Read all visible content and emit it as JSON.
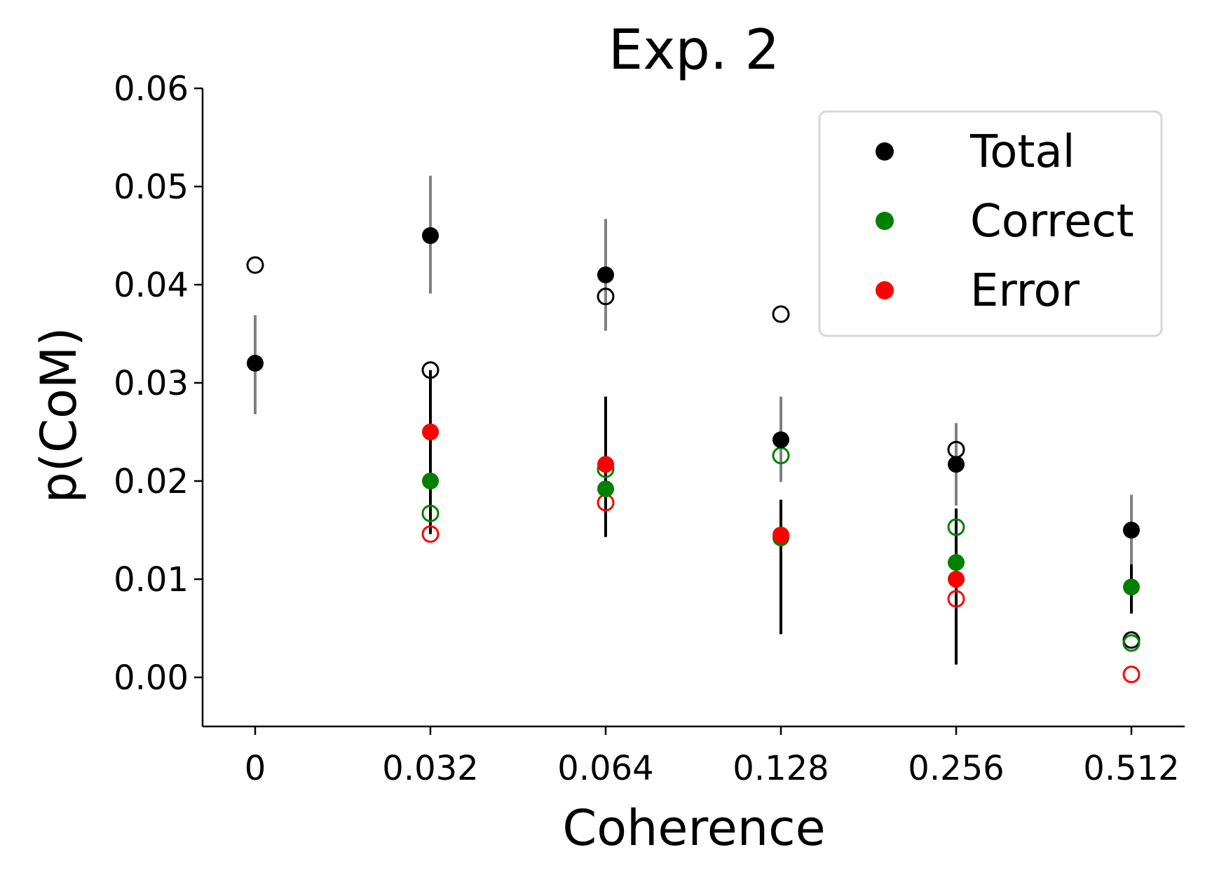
{
  "chart_data": {
    "type": "scatter",
    "title": "Exp. 2",
    "xlabel": "Coherence",
    "ylabel": "p(CoM)",
    "categories": [
      "0",
      "0.032",
      "0.064",
      "0.128",
      "0.256",
      "0.512"
    ],
    "ylim": [
      -0.005,
      0.06
    ],
    "yticks": [
      "0.00",
      "0.01",
      "0.02",
      "0.03",
      "0.04",
      "0.05",
      "0.06"
    ],
    "grid": false,
    "legend_position": "top-right",
    "series": [
      {
        "name": "Total",
        "color": "#000000",
        "filled": [
          0.032,
          0.045,
          0.041,
          0.0242,
          0.0217,
          0.015
        ],
        "error": [
          [
            0.0268,
            0.0369
          ],
          [
            0.0391,
            0.0511
          ],
          [
            0.0353,
            0.0467
          ],
          [
            0.0199,
            0.0286
          ],
          [
            0.0175,
            0.0259
          ],
          [
            0.0115,
            0.0186
          ]
        ],
        "hollow": [
          0.042,
          0.0313,
          0.0388,
          0.037,
          0.0232,
          0.0038
        ]
      },
      {
        "name": "Correct",
        "color": "#008000",
        "filled": [
          null,
          0.02,
          0.0192,
          0.0142,
          0.0117,
          0.0092
        ],
        "hollow": [
          null,
          0.0167,
          0.0212,
          0.0226,
          0.0153,
          0.0035
        ]
      },
      {
        "name": "Error",
        "color": "#ff0000",
        "filled": [
          null,
          0.025,
          0.0217,
          0.0145,
          0.01,
          null
        ],
        "hollow": [
          null,
          0.0146,
          0.0178,
          null,
          0.008,
          0.0003
        ]
      }
    ],
    "error_bars_black": [
      null,
      [
        0.0146,
        0.0313
      ],
      [
        0.0143,
        0.0286
      ],
      [
        0.0044,
        0.0181
      ],
      [
        0.0013,
        0.0172
      ],
      [
        0.0065,
        0.0115
      ]
    ],
    "error_bar_colors": {
      "gray": "#808080",
      "black": "#000000"
    }
  }
}
